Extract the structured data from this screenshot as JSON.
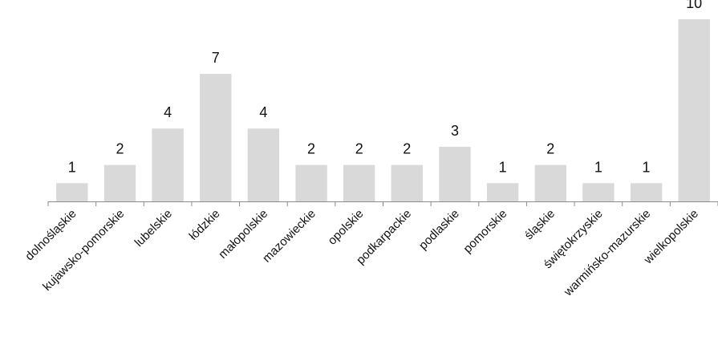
{
  "chart_data": {
    "type": "bar",
    "categories": [
      "dolnośląskie",
      "kujawsko-pomorskie",
      "lubelskie",
      "łódzkie",
      "małopolskie",
      "mazowieckie",
      "opolskie",
      "podkarpackie",
      "podlaskie",
      "pomorskie",
      "śląskie",
      "świętokrzyskie",
      "warmińsko-mazurskie",
      "wielkopolskie"
    ],
    "values": [
      1,
      2,
      4,
      7,
      4,
      2,
      2,
      2,
      3,
      1,
      2,
      1,
      1,
      10
    ],
    "ylim": [
      0,
      10
    ],
    "grid": false,
    "bar_color": "#d9d9d9",
    "axis_color": "#8c8c8c",
    "text_color": "#111111"
  }
}
